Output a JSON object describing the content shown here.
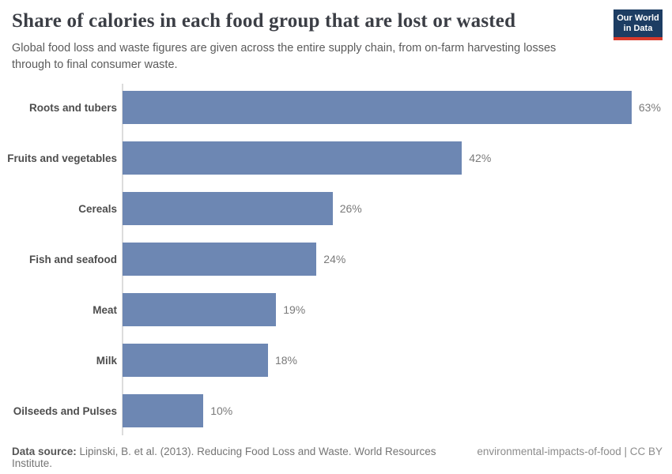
{
  "header": {
    "title": "Share of calories in each food group that are lost or wasted",
    "subtitle": "Global food loss and waste figures are given across the entire supply chain, from on-farm harvesting losses through to final consumer waste.",
    "logo": {
      "line1": "Our World",
      "line2": "in Data",
      "bg_color": "#1d3d63",
      "stripe_color": "#d93a2b"
    }
  },
  "chart_data": {
    "type": "bar",
    "orientation": "horizontal",
    "title": "Share of calories in each food group that are lost or wasted",
    "categories": [
      "Roots and tubers",
      "Fruits and vegetables",
      "Cereals",
      "Fish and seafood",
      "Meat",
      "Milk",
      "Oilseeds and Pulses"
    ],
    "values": [
      63,
      42,
      26,
      24,
      19,
      18,
      10
    ],
    "value_labels": [
      "63%",
      "42%",
      "26%",
      "24%",
      "19%",
      "18%",
      "10%"
    ],
    "unit": "%",
    "xlim": [
      0,
      68
    ],
    "grid": false,
    "legend": "none",
    "bar_color": "#6d87b3",
    "axis_line_color": "#dcdcdc"
  },
  "footer": {
    "source_label": "Data source:",
    "source_text": "Lipinski, B. et al. (2013). Reducing Food Loss and Waste. World Resources Institute.",
    "credit": "environmental-impacts-of-food | CC BY"
  }
}
